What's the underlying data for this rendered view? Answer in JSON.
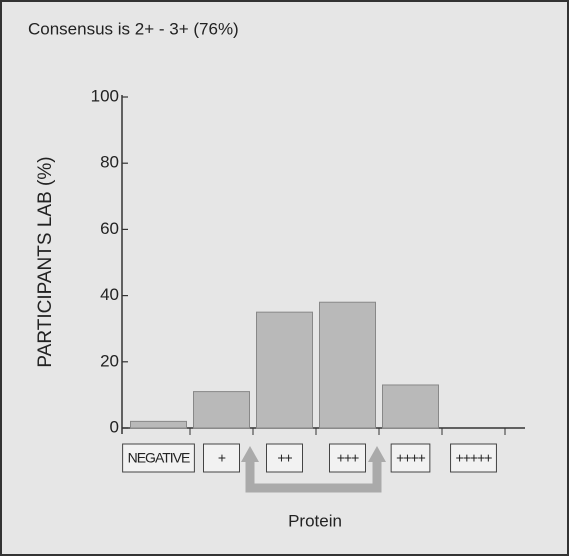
{
  "chart_data": {
    "type": "bar",
    "title": "Consensus is  2+ - 3+ (76%)",
    "categories": [
      "NEGATIVE",
      "+",
      "++",
      "+++",
      "++++",
      "+++++"
    ],
    "values": [
      2,
      11,
      35,
      38,
      13,
      0
    ],
    "color": "#b9b9b9",
    "ylim": [
      0,
      100
    ],
    "yticks": [
      0,
      20,
      40,
      60,
      80,
      100
    ],
    "xlabel": "Protein",
    "ylabel": "PARTICIPANTS LAB (%)",
    "grid": false
  }
}
